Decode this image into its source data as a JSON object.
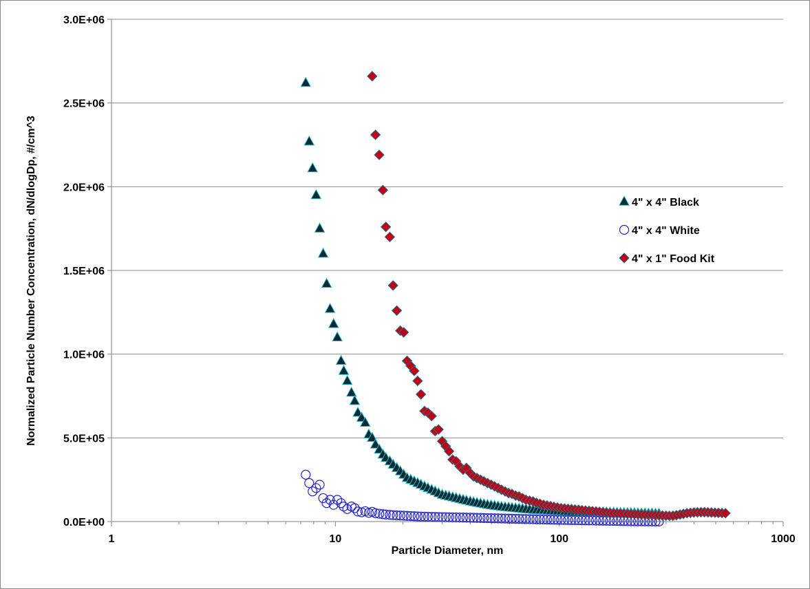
{
  "chart_data": {
    "type": "scatter",
    "xlabel": "Particle Diameter, nm",
    "ylabel": "Normalized Particle Number Concentration, dN/dlogDp, #/cm^3",
    "xscale": "log",
    "xlim": [
      1,
      1000
    ],
    "ylim": [
      0,
      3000000
    ],
    "xticks": [
      1,
      10,
      100,
      1000
    ],
    "xtick_labels": [
      "1",
      "10",
      "100",
      "1000"
    ],
    "yticks": [
      0,
      500000,
      1000000,
      1500000,
      2000000,
      2500000,
      3000000
    ],
    "ytick_labels": [
      "0.0E+00",
      "5.0E+05",
      "1.0E+06",
      "1.5E+06",
      "2.0E+06",
      "2.5E+06",
      "3.0E+06"
    ],
    "grid": "horizontal major",
    "legend_position": "right",
    "series": [
      {
        "name": "4\" x 4\" Black",
        "marker": "triangle",
        "fill": "#0b2a33",
        "stroke": "#2bb3c0",
        "x": [
          7.37,
          7.64,
          7.91,
          8.2,
          8.51,
          8.82,
          9.14,
          9.47,
          9.82,
          10.2,
          10.6,
          10.9,
          11.3,
          11.8,
          12.2,
          12.6,
          13.1,
          13.6,
          14.1,
          14.6,
          15.1,
          15.7,
          16.3,
          16.8,
          17.5,
          18.1,
          18.8,
          19.5,
          20.2,
          20.9,
          21.7,
          22.5,
          23.3,
          24.1,
          25.0,
          25.9,
          26.9,
          27.9,
          28.9,
          30.0,
          31.1,
          32.2,
          33.4,
          34.6,
          35.9,
          37.2,
          38.5,
          40.0,
          41.4,
          42.9,
          44.5,
          46.1,
          47.8,
          49.6,
          51.4,
          53.3,
          55.2,
          57.3,
          59.4,
          61.5,
          63.8,
          66.1,
          68.5,
          71.0,
          73.7,
          76.4,
          79.1,
          82.0,
          85.1,
          88.2,
          91.4,
          94.7,
          98.2,
          101.8,
          105.5,
          109.4,
          113.4,
          117.6,
          121.9,
          126.3,
          131.0,
          135.8,
          140.7,
          145.9,
          151.2,
          156.8,
          162.5,
          168.5,
          174.7,
          181.1,
          187.7,
          194.6,
          201.7,
          209.1,
          216.7,
          224.7,
          232.9,
          241.4,
          250.3,
          259.5,
          269.0,
          278.8
        ],
        "y": [
          2620000,
          2270000,
          2110000,
          1950000,
          1750000,
          1600000,
          1420000,
          1270000,
          1180000,
          1100000,
          960000,
          900000,
          840000,
          770000,
          720000,
          650000,
          620000,
          590000,
          520000,
          500000,
          460000,
          430000,
          400000,
          380000,
          360000,
          340000,
          320000,
          300000,
          280000,
          260000,
          250000,
          240000,
          230000,
          220000,
          210000,
          200000,
          190000,
          180000,
          170000,
          160000,
          155000,
          150000,
          145000,
          140000,
          135000,
          130000,
          125000,
          120000,
          116000,
          112000,
          108000,
          104000,
          100000,
          97000,
          94000,
          91000,
          88000,
          86000,
          84000,
          82000,
          80000,
          78000,
          76000,
          74000,
          72000,
          70000,
          69000,
          68000,
          67000,
          66000,
          65000,
          64000,
          63000,
          62000,
          61000,
          60000,
          59500,
          59000,
          58500,
          58000,
          57500,
          57000,
          56500,
          56000,
          55500,
          55000,
          54500,
          54000,
          53500,
          53000,
          52500,
          52000,
          51500,
          51000,
          50500,
          50000,
          49500,
          49000,
          48500,
          48000,
          47500,
          47000
        ]
      },
      {
        "name": "4\" x 4\" White",
        "marker": "circle",
        "fill": "none",
        "stroke": "#2222cc",
        "x": [
          7.37,
          7.64,
          7.91,
          8.2,
          8.51,
          8.82,
          9.14,
          9.47,
          9.82,
          10.2,
          10.6,
          10.9,
          11.3,
          11.8,
          12.2,
          12.6,
          13.1,
          13.6,
          14.1,
          14.6,
          15.1,
          15.7,
          16.3,
          16.8,
          17.5,
          18.1,
          18.8,
          19.5,
          20.2,
          20.9,
          21.7,
          22.5,
          23.3,
          24.1,
          25.0,
          25.9,
          26.9,
          27.9,
          28.9,
          30.0,
          31.1,
          32.2,
          33.4,
          34.6,
          35.9,
          37.2,
          38.5,
          40.0,
          41.4,
          42.9,
          44.5,
          46.1,
          47.8,
          49.6,
          51.4,
          53.3,
          55.2,
          57.3,
          59.4,
          61.5,
          63.8,
          66.1,
          68.5,
          71.0,
          73.7,
          76.4,
          79.1,
          82.0,
          85.1,
          88.2,
          91.4,
          94.7,
          98.2,
          101.8,
          105.5,
          109.4,
          113.4,
          117.6,
          121.9,
          126.3,
          131.0,
          135.8,
          140.7,
          145.9,
          151.2,
          156.8,
          162.5,
          168.5,
          174.7,
          181.1,
          187.7,
          194.6,
          201.7,
          209.1,
          216.7,
          224.7,
          232.9,
          241.4,
          250.3,
          259.5,
          269.0,
          278.8
        ],
        "y": [
          280000,
          230000,
          180000,
          200000,
          220000,
          140000,
          110000,
          130000,
          100000,
          130000,
          110000,
          90000,
          75000,
          90000,
          80000,
          60000,
          55000,
          62000,
          52000,
          58000,
          50000,
          47000,
          44000,
          42000,
          40000,
          38000,
          37000,
          36000,
          35000,
          34000,
          33000,
          32000,
          31000,
          30000,
          29500,
          29000,
          28500,
          28000,
          27500,
          27000,
          26500,
          26000,
          25500,
          25000,
          24500,
          24000,
          23500,
          23000,
          22500,
          22000,
          21500,
          21000,
          20500,
          20000,
          19500,
          19000,
          18500,
          18000,
          17500,
          17000,
          16500,
          16000,
          15500,
          15000,
          14500,
          14000,
          13500,
          13000,
          12500,
          12000,
          11500,
          11000,
          10500,
          10000,
          9600,
          9200,
          8800,
          8400,
          8000,
          7600,
          7200,
          6800,
          6400,
          6000,
          5600,
          5200,
          4800,
          4400,
          4000,
          3600,
          3200,
          2800,
          2400,
          2000,
          1800,
          1600,
          1400,
          1200,
          1000,
          800,
          600,
          500
        ]
      },
      {
        "name": "4\" x 1\" Food Kit",
        "marker": "diamond",
        "fill": "#c0001a",
        "stroke": "#2a6f7a",
        "x": [
          14.6,
          15.1,
          15.7,
          16.3,
          16.8,
          17.5,
          18.1,
          18.8,
          19.5,
          20.2,
          20.9,
          21.7,
          22.5,
          23.3,
          24.1,
          25.0,
          25.9,
          26.9,
          27.9,
          28.9,
          30.0,
          31.1,
          32.2,
          33.4,
          34.6,
          35.9,
          37.2,
          38.5,
          40.0,
          41.4,
          42.9,
          44.5,
          46.1,
          47.8,
          49.6,
          51.4,
          53.3,
          55.2,
          57.3,
          59.4,
          61.5,
          63.8,
          66.1,
          68.5,
          71.0,
          73.7,
          76.4,
          79.1,
          82.0,
          85.1,
          88.2,
          91.4,
          94.7,
          98.2,
          101.8,
          105.5,
          109.4,
          113.4,
          117.6,
          121.9,
          126.3,
          131.0,
          135.8,
          140.7,
          145.9,
          151.2,
          156.8,
          162.5,
          168.5,
          174.7,
          181.1,
          187.7,
          194.6,
          201.7,
          209.1,
          216.7,
          224.7,
          232.9,
          241.4,
          250.3,
          259.5,
          269.0,
          278.8,
          289.0,
          299.6,
          310.6,
          322.0,
          333.8,
          346.0,
          358.7,
          371.8,
          385.4,
          399.5,
          414.2,
          429.4,
          445.1,
          461.4,
          478.3,
          495.8,
          514.0,
          532.8,
          552.3
        ],
        "y": [
          2660000,
          2310000,
          2190000,
          1980000,
          1760000,
          1700000,
          1410000,
          1260000,
          1140000,
          1130000,
          960000,
          930000,
          900000,
          840000,
          760000,
          660000,
          650000,
          630000,
          540000,
          550000,
          480000,
          450000,
          420000,
          370000,
          360000,
          330000,
          310000,
          320000,
          290000,
          270000,
          260000,
          250000,
          240000,
          230000,
          220000,
          210000,
          200000,
          190000,
          180000,
          170000,
          165000,
          155000,
          150000,
          140000,
          130000,
          125000,
          120000,
          112000,
          106000,
          100000,
          96000,
          92000,
          88000,
          84000,
          80000,
          78000,
          76000,
          74000,
          72000,
          70000,
          68000,
          66000,
          64000,
          62000,
          60000,
          58000,
          56000,
          54000,
          52000,
          50000,
          49000,
          48000,
          47000,
          46000,
          45000,
          44000,
          43000,
          42000,
          41000,
          40000,
          39000,
          38000,
          37000,
          36000,
          35000,
          34000,
          35000,
          38000,
          42000,
          46000,
          50000,
          52000,
          54000,
          55000,
          56000,
          56000,
          55000,
          54000,
          53000,
          52000,
          51000,
          50000
        ]
      }
    ]
  }
}
